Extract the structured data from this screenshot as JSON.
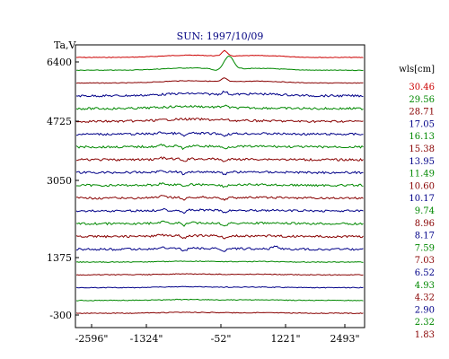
{
  "chart_data": {
    "type": "line",
    "title": "SUN: 1997/10/09",
    "ylabel": "Ta,V",
    "y_ticks": [
      "6400",
      "4725",
      "3050",
      "1375",
      "-300"
    ],
    "x_ticks": [
      "-2596\"",
      "-1324\"",
      "-52\"",
      "1221\"",
      "2493\""
    ],
    "legend_title": "wls[cm]",
    "series": [
      {
        "name": "30.46",
        "color": "#cc0000"
      },
      {
        "name": "29.56",
        "color": "#008800"
      },
      {
        "name": "28.71",
        "color": "#880000"
      },
      {
        "name": "17.05",
        "color": "#000088"
      },
      {
        "name": "16.13",
        "color": "#008800"
      },
      {
        "name": "15.38",
        "color": "#880000"
      },
      {
        "name": "13.95",
        "color": "#000088"
      },
      {
        "name": "11.49",
        "color": "#008800"
      },
      {
        "name": "10.60",
        "color": "#880000"
      },
      {
        "name": "10.17",
        "color": "#000088"
      },
      {
        "name": "9.74",
        "color": "#008800"
      },
      {
        "name": "8.96",
        "color": "#880000"
      },
      {
        "name": "8.17",
        "color": "#000088"
      },
      {
        "name": "7.59",
        "color": "#008800"
      },
      {
        "name": "7.03",
        "color": "#880000"
      },
      {
        "name": "6.52",
        "color": "#000088"
      },
      {
        "name": "4.93",
        "color": "#008800"
      },
      {
        "name": "4.32",
        "color": "#880000"
      },
      {
        "name": "2.90",
        "color": "#000088"
      },
      {
        "name": "2.32",
        "color": "#008800"
      },
      {
        "name": "1.83",
        "color": "#880000"
      }
    ]
  }
}
